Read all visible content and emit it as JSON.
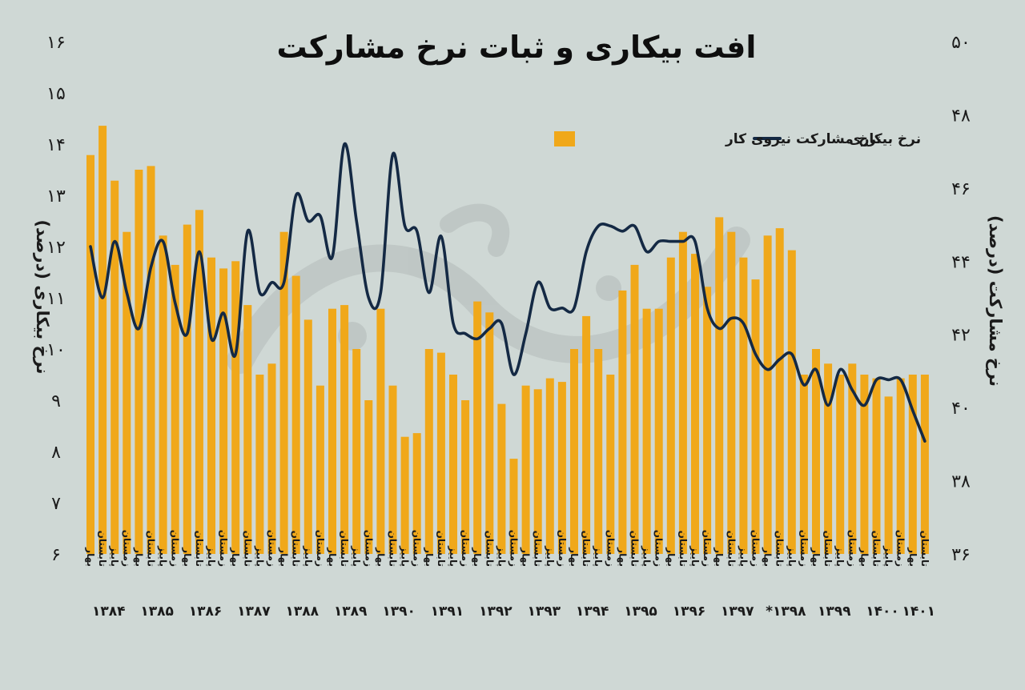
{
  "chart_data": {
    "type": "bar",
    "title": "افت بیکاری و ثبات نرخ مشارکت",
    "left_axis": {
      "label": "نرخ بیکاری (درصد)",
      "range": [
        6,
        16
      ],
      "ticks": [
        "۶",
        "۷",
        "۸",
        "۹",
        "۱۰",
        "۱۱",
        "۱۲",
        "۱۳",
        "۱۴",
        "۱۵",
        "۱۶"
      ]
    },
    "right_axis": {
      "label": "نرخ مشارکت (درصد)",
      "range": [
        36,
        50
      ],
      "ticks": [
        "۳۶",
        "۳۸",
        "۴۰",
        "۴۲",
        "۴۴",
        "۴۶",
        "۴۸",
        "۵۰"
      ]
    },
    "legend": {
      "placement": "top-right",
      "line_label": "نرخ بیکاری",
      "bar_label": "نرخ مشارکت نیروی کار"
    },
    "colors": {
      "bar": "#f0a81a",
      "line": "#142944",
      "background": "#cfd8d5"
    },
    "season_labels": [
      "بهار",
      "تابستان",
      "پاییز",
      "زمستان"
    ],
    "years": [
      "۱۳۸۴",
      "۱۳۸۵",
      "۱۳۸۶",
      "۱۳۸۷",
      "۱۳۸۸",
      "۱۳۸۹",
      "۱۳۹۰",
      "۱۳۹۱",
      "۱۳۹۲",
      "۱۳۹۳",
      "۱۳۹۴",
      "۱۳۹۵",
      "۱۳۹۶",
      "۱۳۹۷",
      "*۱۳۹۸",
      "۱۳۹۹",
      "۱۴۰۰",
      "۱۴۰۱"
    ],
    "series": [
      {
        "name": "نرخ مشارکت نیروی کار",
        "axis": "right",
        "kind": "bar",
        "values": [
          46.9,
          47.7,
          46.2,
          44.8,
          46.5,
          46.6,
          44.7,
          43.9,
          45.0,
          45.4,
          44.1,
          43.8,
          44.0,
          42.8,
          40.9,
          41.2,
          44.8,
          43.6,
          42.4,
          40.6,
          42.7,
          42.8,
          41.6,
          40.2,
          42.7,
          40.6,
          39.2,
          39.3,
          41.6,
          41.5,
          40.9,
          40.2,
          42.9,
          42.6,
          40.1,
          38.6,
          40.6,
          40.5,
          40.8,
          40.7,
          41.6,
          42.5,
          41.6,
          40.9,
          43.2,
          43.9,
          42.7,
          42.7,
          44.1,
          44.8,
          44.2,
          43.3,
          45.2,
          44.8,
          44.1,
          43.5,
          44.7,
          44.9,
          44.3,
          40.9,
          41.6,
          41.2,
          40.9,
          41.2,
          40.9,
          40.8,
          40.3,
          40.8,
          40.9,
          40.9
        ]
      },
      {
        "name": "نرخ بیکاری",
        "axis": "left",
        "kind": "line",
        "values": [
          12.0,
          11.0,
          12.1,
          11.1,
          10.4,
          11.6,
          12.1,
          10.9,
          10.3,
          11.9,
          10.2,
          10.7,
          9.9,
          12.3,
          11.1,
          11.3,
          11.3,
          13.0,
          12.5,
          12.6,
          11.8,
          14.0,
          12.5,
          11.0,
          11.1,
          13.8,
          12.4,
          12.3,
          11.1,
          12.2,
          10.5,
          10.3,
          10.2,
          10.4,
          10.5,
          9.5,
          10.3,
          11.3,
          10.8,
          10.8,
          10.8,
          11.9,
          12.4,
          12.4,
          12.3,
          12.4,
          11.9,
          12.1,
          12.1,
          12.1,
          12.1,
          10.8,
          10.4,
          10.6,
          10.5,
          9.9,
          9.6,
          9.8,
          9.9,
          9.3,
          9.6,
          8.9,
          9.6,
          9.2,
          8.9,
          9.4,
          9.4,
          9.4,
          8.8,
          8.2
        ]
      }
    ]
  }
}
